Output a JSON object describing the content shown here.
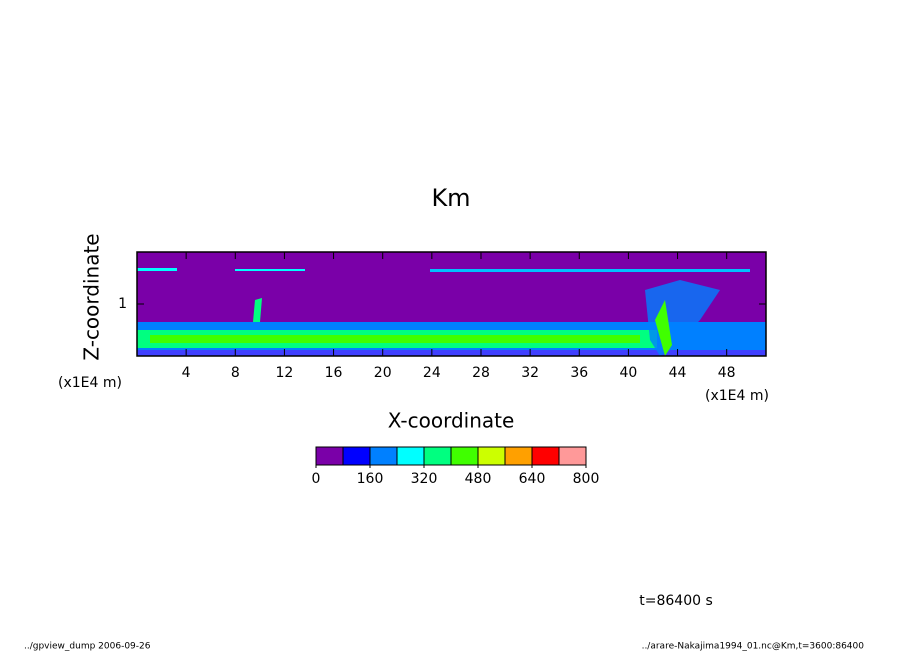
{
  "chart_data": {
    "type": "contour",
    "title": "Km",
    "xlabel": "X-coordinate",
    "ylabel": "Z-coordinate",
    "xunit": "(x1E4 m)",
    "yunit": "(x1E4 m)",
    "xlim": [
      0,
      51.2
    ],
    "ylim": [
      0,
      2
    ],
    "xticks": [
      4,
      8,
      12,
      16,
      20,
      24,
      28,
      32,
      36,
      40,
      44,
      48
    ],
    "yticks": [
      1
    ],
    "colorbar": {
      "levels": [
        0,
        80,
        160,
        240,
        320,
        400,
        480,
        560,
        640,
        720,
        800
      ],
      "colors": [
        "#7a00a8",
        "#0000ff",
        "#0080ff",
        "#00ffff",
        "#00ff80",
        "#40ff00",
        "#ccff00",
        "#ffa000",
        "#ff0000",
        "#ff9999"
      ],
      "ticks": [
        0,
        160,
        320,
        480,
        640,
        800
      ]
    },
    "annotation": "t=86400 s",
    "footer_left": "../gpview_dump  2006-09-26",
    "footer_right": "../arare-Nakajima1994_01.nc@Km,t=3600:86400"
  }
}
